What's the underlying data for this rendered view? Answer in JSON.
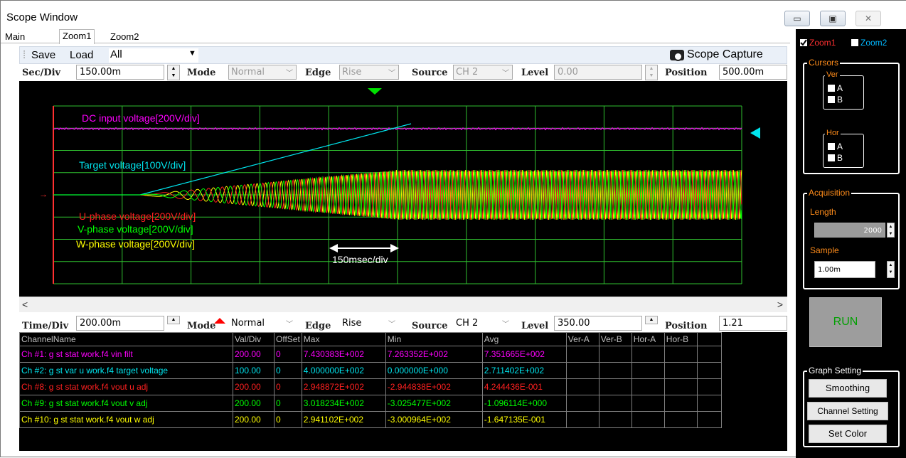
{
  "window": {
    "title": "Scope Window",
    "controls": [
      "▭",
      "▣",
      "✕"
    ]
  },
  "tabs": [
    "Main",
    "Zoom1",
    "Zoom2"
  ],
  "toolbar": {
    "save": "Save",
    "load": "Load",
    "load_value": "All",
    "capture": "Scope Capture"
  },
  "upper": {
    "secdiv_label": "Sec/Div",
    "secdiv_value": "150.00m",
    "mode_label": "Mode",
    "mode_value": "Normal",
    "edge_label": "Edge",
    "edge_value": "Rise",
    "source_label": "Source",
    "source_value": "CH 2",
    "level_label": "Level",
    "level_value": "0.00",
    "position_label": "Position",
    "position_value": "500.00m"
  },
  "plot": {
    "labels": {
      "dc": "DC input voltage[200V/div]",
      "target": "Target voltage[100V/div]",
      "u": "U-phase voltage[200V/div]",
      "v": "V-phase voltage[200V/div]",
      "w": "W-phase voltage[200V/div]",
      "timescale": "150msec/div"
    },
    "colors": {
      "dc": "#ff00ff",
      "target": "#00e5ee",
      "u": "#ff2020",
      "v": "#00ff00",
      "w": "#ffff00",
      "grid": "#2fbf2f",
      "frame": "#ff3030",
      "arrow": "#ffffff"
    }
  },
  "lower": {
    "timediv_label": "Time/Div",
    "timediv_value": "200.00m",
    "mode_label": "Mode",
    "mode_value": "Normal",
    "edge_label": "Edge",
    "edge_value": "Rise",
    "source_label": "Source",
    "source_value": "CH 2",
    "level_label": "Level",
    "level_value": "350.00",
    "position_label": "Position",
    "position_value": "1.21"
  },
  "table": {
    "headers": [
      "ChannelName",
      "Val/Div",
      "OffSet",
      "Max",
      "Min",
      "Avg",
      "Ver-A",
      "Ver-B",
      "Hor-A",
      "Hor-B"
    ],
    "rows": [
      {
        "color": "#ff00ff",
        "cells": [
          "Ch #1: g st stat work.f4 vin filt",
          "200.00",
          "0",
          "7.430383E+002",
          "7.263352E+002",
          "7.351665E+002",
          "",
          "",
          "",
          ""
        ]
      },
      {
        "color": "#00e5ee",
        "cells": [
          "Ch #2: g st var u work.f4 target voltage",
          "100.00",
          "0",
          "4.000000E+002",
          "0.000000E+000",
          "2.711402E+002",
          "",
          "",
          "",
          ""
        ]
      },
      {
        "color": "#ff2020",
        "cells": [
          "Ch #8: g st stat work.f4 vout u adj",
          "200.00",
          "0",
          "2.948872E+002",
          "-2.944838E+002",
          "4.244436E-001",
          "",
          "",
          "",
          ""
        ]
      },
      {
        "color": "#00ff00",
        "cells": [
          "Ch #9: g st stat work.f4 vout v adj",
          "200.00",
          "0",
          "3.018234E+002",
          "-3.025477E+002",
          "-1.096114E+000",
          "",
          "",
          "",
          ""
        ]
      },
      {
        "color": "#ffff00",
        "cells": [
          "Ch #10: g st stat work.f4 vout w adj",
          "200.00",
          "0",
          "2.941102E+002",
          "-3.000964E+002",
          "-1.647135E-001",
          "",
          "",
          "",
          ""
        ]
      }
    ]
  },
  "right": {
    "zoom1": "Zoom1",
    "zoom2": "Zoom2",
    "cursors_title": "Cursors",
    "ver_title": "Ver",
    "hor_title": "Hor",
    "a": "A",
    "b": "B",
    "acq_title": "Acquisition",
    "length_label": "Length",
    "length_value": "2000",
    "sample_label": "Sample",
    "sample_value": "1.00m",
    "run": "RUN",
    "graph_title": "Graph Setting",
    "smoothing": "Smoothing",
    "channel_setting": "Channel Setting",
    "set_color": "Set Color"
  }
}
